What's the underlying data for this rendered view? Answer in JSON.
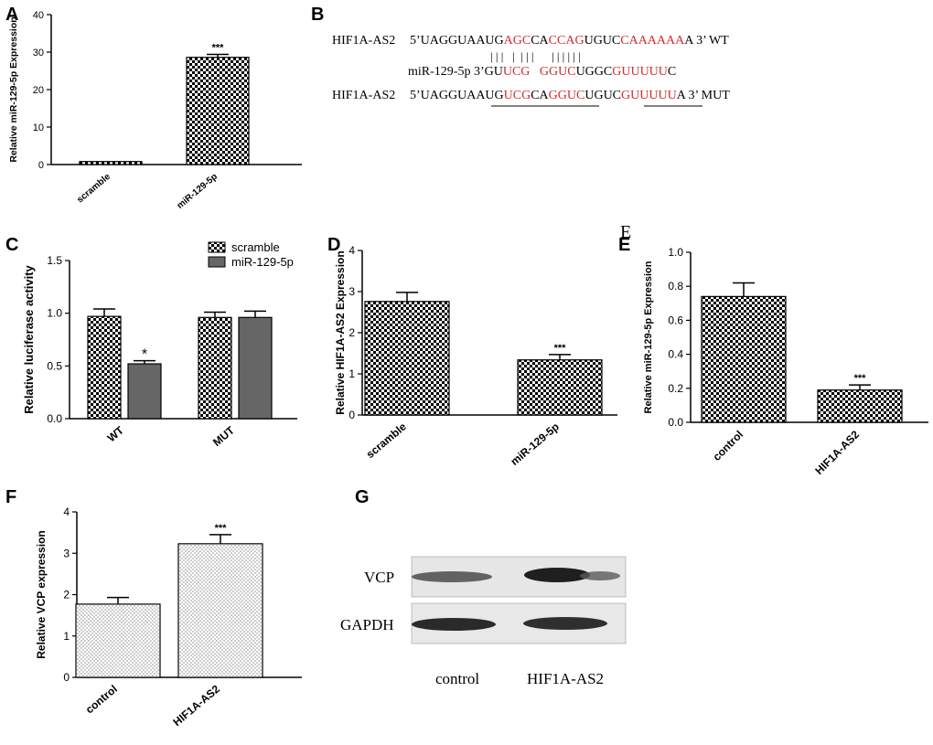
{
  "panel_letters": [
    "A",
    "B",
    "C",
    "D",
    "E",
    "F",
    "G"
  ],
  "panel_e_stray_letter": "E",
  "chart_data": [
    {
      "panel": "A",
      "type": "bar",
      "categories": [
        "scramble",
        "miR-129-5p"
      ],
      "values": [
        0.8,
        28.6
      ],
      "errors": [
        0.0,
        0.8
      ],
      "ylabel": "Relative miR-129-5p Expression",
      "ylim": [
        0,
        40
      ],
      "yticks": [
        0,
        10,
        20,
        30,
        40
      ],
      "significance": [
        "",
        "***"
      ],
      "fill": "checker"
    },
    {
      "panel": "C",
      "type": "bar",
      "categories": [
        "WT",
        "MUT"
      ],
      "series": [
        {
          "name": "scramble",
          "values": [
            0.97,
            0.96
          ],
          "errors": [
            0.07,
            0.05
          ],
          "significance": [
            "",
            ""
          ]
        },
        {
          "name": "miR-129-5p",
          "values": [
            0.52,
            0.96
          ],
          "errors": [
            0.03,
            0.06
          ],
          "significance": [
            "*",
            ""
          ]
        }
      ],
      "ylabel": "Relative luciferase activity",
      "ylim": [
        0,
        1.5
      ],
      "yticks": [
        "0.0",
        "0.5",
        "1.0",
        "1.5"
      ],
      "legend": "top-right"
    },
    {
      "panel": "D",
      "type": "bar",
      "categories": [
        "scramble",
        "miR-129-5p"
      ],
      "values": [
        2.76,
        1.34
      ],
      "errors": [
        0.22,
        0.13
      ],
      "ylabel": "Relative HIF1A-AS2 Expression",
      "ylim": [
        0,
        4
      ],
      "yticks": [
        "0",
        "1",
        "2",
        "3",
        "4"
      ],
      "significance": [
        "",
        "***"
      ],
      "fill": "checker"
    },
    {
      "panel": "E",
      "type": "bar",
      "categories": [
        "control",
        "HIF1A-AS2"
      ],
      "values": [
        0.74,
        0.19
      ],
      "errors": [
        0.08,
        0.03
      ],
      "ylabel": "Relative miR-129-5p Expression",
      "ylim": [
        0,
        1.0
      ],
      "yticks": [
        "0.0",
        "0.2",
        "0.4",
        "0.6",
        "0.8",
        "1.0"
      ],
      "significance": [
        "",
        "***"
      ],
      "fill": "checker"
    },
    {
      "panel": "F",
      "type": "bar",
      "categories": [
        "control",
        "HIF1A-AS2"
      ],
      "values": [
        1.77,
        3.23
      ],
      "errors": [
        0.16,
        0.22
      ],
      "ylabel": "Relative VCP expression",
      "ylim": [
        0,
        4
      ],
      "yticks": [
        "0",
        "1",
        "2",
        "3",
        "4"
      ],
      "significance": [
        "",
        "***"
      ],
      "fill": "dots"
    }
  ],
  "sequence_panel": {
    "wt_label": "HIF1A-AS2",
    "wt_segments": [
      {
        "t": "5’UAGGUAAUG",
        "c": "black"
      },
      {
        "t": "AGC",
        "c": "red"
      },
      {
        "t": "CA",
        "c": "black"
      },
      {
        "t": "CCAG",
        "c": "red"
      },
      {
        "t": "UGUC",
        "c": "black"
      },
      {
        "t": "CAAAAAA",
        "c": "red"
      },
      {
        "t": "A 3’ WT",
        "c": "black"
      }
    ],
    "pair_bars": "| | |   |  | | |      | | | | | |",
    "mir_segments": [
      {
        "t": "miR-129-5p 3’GU",
        "c": "black"
      },
      {
        "t": "UCG",
        "c": "red"
      },
      {
        "t": "   ",
        "c": "black"
      },
      {
        "t": "GGUC",
        "c": "red"
      },
      {
        "t": "UGGC",
        "c": "black"
      },
      {
        "t": "GUUUUU",
        "c": "red"
      },
      {
        "t": "C",
        "c": "black"
      }
    ],
    "mut_label": "HIF1A-AS2",
    "mut_segments": [
      {
        "t": "5’UAGGUAAUG",
        "c": "black"
      },
      {
        "t": "UCG",
        "c": "red"
      },
      {
        "t": "CA",
        "c": "black"
      },
      {
        "t": "GGUC",
        "c": "red"
      },
      {
        "t": "UGUC",
        "c": "black"
      },
      {
        "t": "GUUUUU",
        "c": "red"
      },
      {
        "t": "A 3’ MUT",
        "c": "black"
      }
    ]
  },
  "western_blot": {
    "rows": [
      "VCP",
      "GAPDH"
    ],
    "lanes": [
      "control",
      "HIF1A-AS2"
    ]
  },
  "colors": {
    "seq_red": "#d42a2a",
    "bar_dark": "#666666"
  }
}
